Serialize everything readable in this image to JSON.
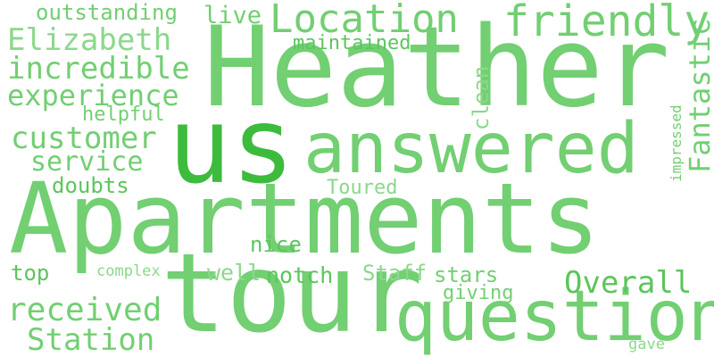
{
  "words": {
    "w01": "Apartments",
    "w02": "Heather",
    "w03": "tour",
    "w04": "us",
    "w05": "answered",
    "w06": "questions",
    "w07": "Location",
    "w08": "friendly",
    "w09": "outstanding",
    "w10": "live",
    "w11": "Elizabeth",
    "w12": "maintained",
    "w13": "incredible",
    "w14": "experience",
    "w15": "helpful",
    "w16": "clean",
    "w17": "Fantastic",
    "w18": "impressed",
    "w19": "customer",
    "w20": "service",
    "w21": "doubts",
    "w22": "Toured",
    "w23": "nice",
    "w24": "top",
    "w25": "complex",
    "w26": "well",
    "w27": "notch",
    "w28": "Staff",
    "w29": "stars",
    "w30": "Overall",
    "w31": "giving",
    "w32": "received",
    "w33": "Station",
    "w34": "gave"
  },
  "colors": {
    "base": "#72cf72",
    "dark": "#3dbb3d",
    "mid": "#5cc55c",
    "pale": "#8bd88b",
    "background": "#ffffff"
  }
}
